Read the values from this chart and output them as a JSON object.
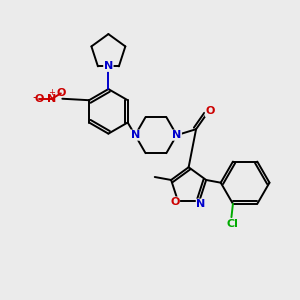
{
  "background_color": "#ebebeb",
  "atom_colors": {
    "C": "#000000",
    "N": "#0000cc",
    "O": "#cc0000",
    "Cl": "#00aa00"
  },
  "figsize": [
    3.0,
    3.0
  ],
  "dpi": 100,
  "lw": 1.4
}
